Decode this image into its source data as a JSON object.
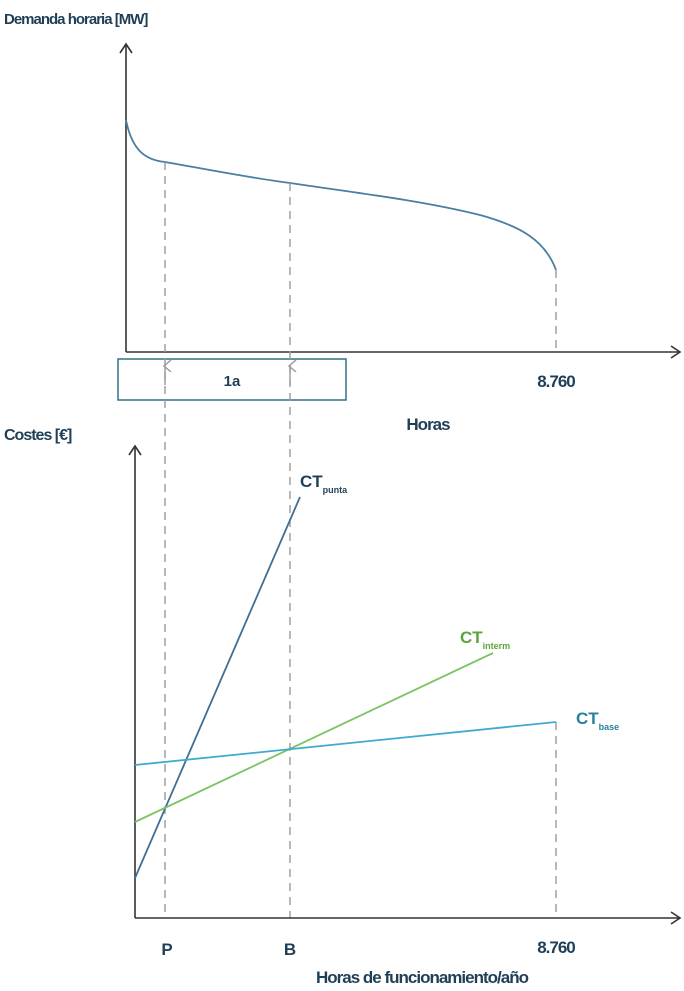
{
  "top": {
    "ylabel": "Demanda horaria [MW]",
    "xlabel": "Horas",
    "x_end_label": "8.760",
    "year_box_label": "1a"
  },
  "bottom": {
    "ylabel": "Costes [€]",
    "xlabel": "Horas de funcionamiento/año",
    "ticks": {
      "p": "P",
      "b": "B",
      "end": "8.760"
    },
    "lines": {
      "punta": {
        "main": "CT",
        "sub": "punta",
        "color": "#3f6f94"
      },
      "interm": {
        "main": "CT",
        "sub": "interm",
        "color": "#7cc464"
      },
      "base": {
        "main": "CT",
        "sub": "base",
        "color": "#3fa9cf"
      }
    }
  },
  "colors": {
    "curve": "#4a7fa3",
    "box": "#3d7a8c",
    "text": "#1f3f57"
  }
}
